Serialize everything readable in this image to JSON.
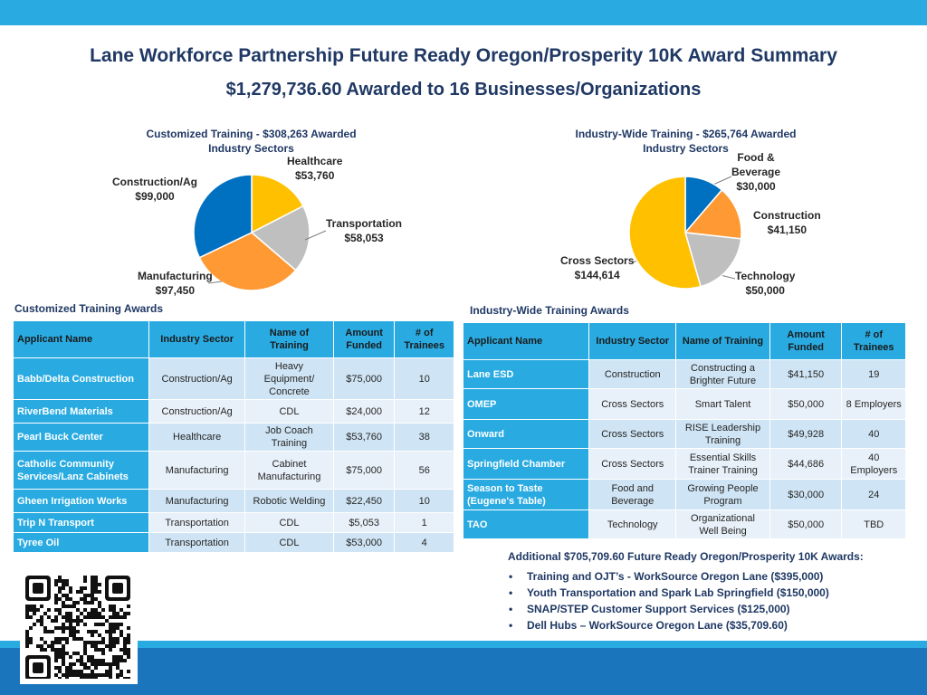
{
  "header": {
    "title": "Lane Workforce Partnership Future Ready Oregon/Prosperity 10K Award Summary",
    "subtitle": "$1,279,736.60 Awarded to 16 Businesses/Organizations"
  },
  "colors": {
    "band_light": "#29abe2",
    "band_dark": "#1b75bc",
    "title": "#1f3864"
  },
  "chart_data": [
    {
      "type": "pie",
      "title": "Customized Training - $308,263 Awarded",
      "subtitle": "Industry Sectors",
      "slices": [
        {
          "label": "Healthcare",
          "value_label": "$53,760",
          "value": 53760,
          "color": "#ffc000"
        },
        {
          "label": "Transportation",
          "value_label": "$58,053",
          "value": 58053,
          "color": "#bfbfbf"
        },
        {
          "label": "Manufacturing",
          "value_label": "$97,450",
          "value": 97450,
          "color": "#ff9933"
        },
        {
          "label": "Construction/Ag",
          "value_label": "$99,000",
          "value": 99000,
          "color": "#0070c0"
        }
      ]
    },
    {
      "type": "pie",
      "title": "Industry-Wide Training - $265,764 Awarded",
      "subtitle": "Industry Sectors",
      "slices": [
        {
          "label": "Food &",
          "label2": "Beverage",
          "value_label": "$30,000",
          "value": 30000,
          "color": "#0070c0"
        },
        {
          "label": "Construction",
          "value_label": "$41,150",
          "value": 41150,
          "color": "#ff9933"
        },
        {
          "label": "Technology",
          "value_label": "$50,000",
          "value": 50000,
          "color": "#bfbfbf"
        },
        {
          "label": "Cross Sectors",
          "value_label": "$144,614",
          "value": 144614,
          "color": "#ffc000"
        }
      ]
    }
  ],
  "customized": {
    "caption": "Customized Training Awards",
    "headers": [
      "Applicant Name",
      "Industry Sector",
      "Name of Training",
      "Amount Funded",
      "# of Trainees"
    ],
    "rows": [
      [
        "Babb/Delta Construction",
        "Construction/Ag",
        "Heavy Equipment/ Concrete",
        "$75,000",
        "10"
      ],
      [
        "RiverBend Materials",
        "Construction/Ag",
        "CDL",
        "$24,000",
        "12"
      ],
      [
        "Pearl Buck Center",
        "Healthcare",
        "Job Coach Training",
        "$53,760",
        "38"
      ],
      [
        "Catholic Community Services/Lanz Cabinets",
        "Manufacturing",
        "Cabinet Manufacturing",
        "$75,000",
        "56"
      ],
      [
        "Gheen Irrigation Works",
        "Manufacturing",
        "Robotic Welding",
        "$22,450",
        "10"
      ],
      [
        "Trip N Transport",
        "Transportation",
        "CDL",
        "$5,053",
        "1"
      ],
      [
        "Tyree Oil",
        "Transportation",
        "CDL",
        "$53,000",
        "4"
      ]
    ]
  },
  "industry": {
    "caption": "Industry-Wide Training Awards",
    "headers": [
      "Applicant  Name",
      "Industry Sector",
      "Name of Training",
      "Amount Funded",
      "# of Trainees"
    ],
    "rows": [
      [
        "Lane ESD",
        "Construction",
        "Constructing a Brighter Future",
        "$41,150",
        "19"
      ],
      [
        "OMEP",
        "Cross Sectors",
        "Smart Talent",
        "$50,000",
        "8 Employers"
      ],
      [
        "Onward",
        "Cross Sectors",
        "RISE Leadership Training",
        "$49,928",
        "40"
      ],
      [
        "Springfield  Chamber",
        "Cross Sectors",
        "Essential Skills Trainer Training",
        "$44,686",
        "40 Employers"
      ],
      [
        "Season to Taste (Eugene's Table)",
        "Food and Beverage",
        "Growing People Program",
        "$30,000",
        "24"
      ],
      [
        "TAO",
        "Technology",
        "Organizational Well Being",
        "$50,000",
        "TBD"
      ]
    ]
  },
  "additional": {
    "title": "Additional $705,709.60 Future Ready Oregon/Prosperity 10K Awards:",
    "items": [
      "Training and OJT’s - WorkSource Oregon Lane ($395,000)",
      "Youth Transportation and Spark Lab Springfield ($150,000)",
      "SNAP/STEP Customer Support Services ($125,000)",
      "Dell Hubs – WorkSource Oregon Lane ($35,709.60)"
    ]
  }
}
